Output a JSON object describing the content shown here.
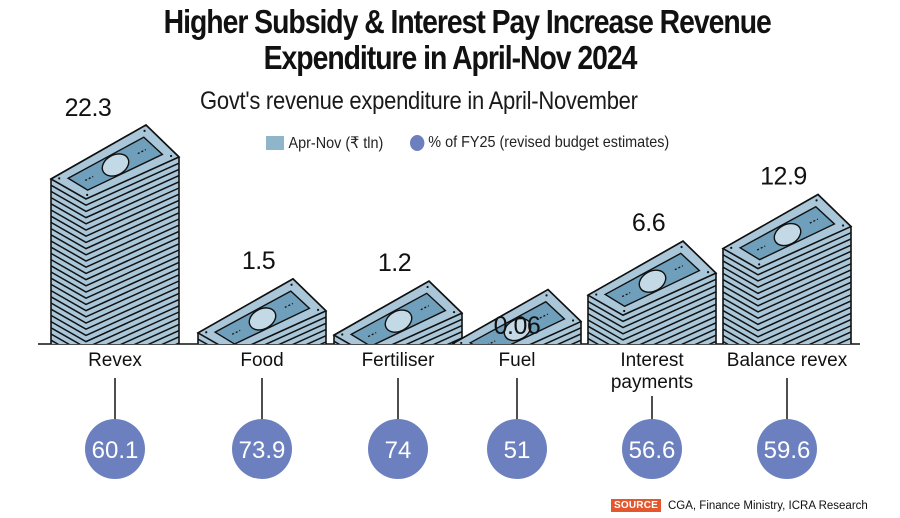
{
  "title": {
    "line1": "Higher Subsidy & Interest Pay Increase Revenue",
    "line2": "Expenditure in April-Nov 2024"
  },
  "subtitle": "Govt's revenue expenditure in April-November",
  "legend": {
    "bars": "Apr-Nov (₹ tln)",
    "circles": "% of FY25 (revised budget estimates)"
  },
  "colors": {
    "stack_face": "#a9c7d9",
    "note": "#6f9fbb",
    "circle": "#6c80c0",
    "source_tag": "#e4572e"
  },
  "chart_data": {
    "type": "bar",
    "title": "Govt's revenue expenditure in April-November",
    "categories": [
      "Revex",
      "Food",
      "Fertiliser",
      "Fuel",
      "Interest payments",
      "Balance revex"
    ],
    "category_lines": [
      [
        "Revex"
      ],
      [
        "Food"
      ],
      [
        "Fertiliser"
      ],
      [
        "Fuel"
      ],
      [
        "Interest",
        "payments"
      ],
      [
        "Balance revex"
      ]
    ],
    "series": [
      {
        "name": "Apr-Nov (₹ tln)",
        "values": [
          22.3,
          1.5,
          1.2,
          0.06,
          6.6,
          12.9
        ],
        "labels": [
          "22.3",
          "1.5",
          "1.2",
          "0.06",
          "6.6",
          "12.9"
        ]
      },
      {
        "name": "% of FY25 (revised budget estimates)",
        "values": [
          60.1,
          73.9,
          74,
          51,
          56.6,
          59.6
        ],
        "labels": [
          "60.1",
          "73.9",
          "74",
          "51",
          "56.6",
          "59.6"
        ]
      }
    ],
    "xlabel": "",
    "ylabel": "",
    "ylim": [
      0,
      22.3
    ],
    "grid": false,
    "legend_position": "top"
  },
  "source": {
    "tag": "SOURCE",
    "text": "CGA, Finance Ministry, ICRA Research"
  }
}
